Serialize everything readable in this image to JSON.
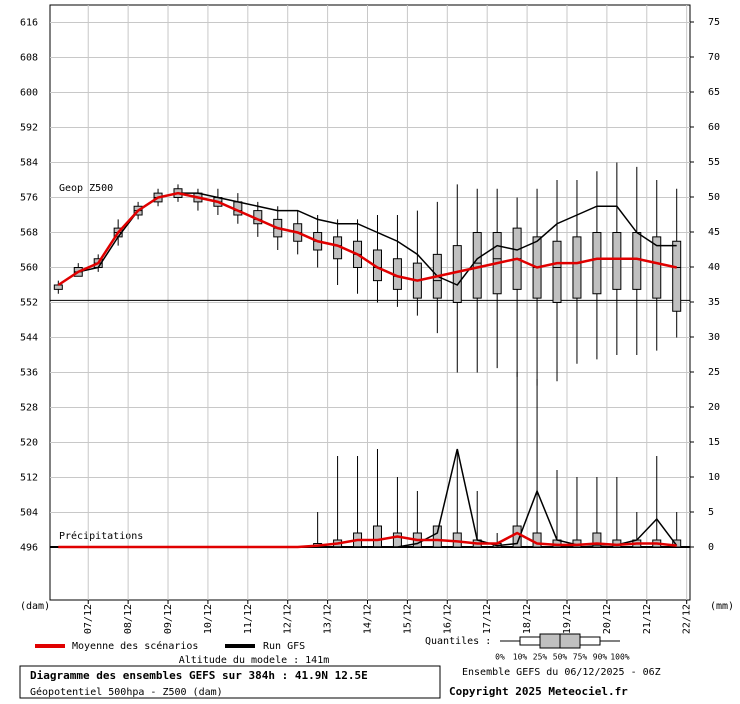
{
  "chart_data": {
    "type": "boxplot",
    "y_label": "Geop Z500",
    "precip_label": "Précipitations",
    "y_unit": "(dam)",
    "y2_unit": "(mm)",
    "x": [
      0,
      12,
      24,
      36,
      48,
      60,
      72,
      84,
      96,
      108,
      120,
      132,
      144,
      156,
      168,
      180,
      192,
      204,
      216,
      228,
      240,
      252,
      264,
      276,
      288,
      300,
      312,
      324,
      336,
      348,
      360,
      372
    ],
    "xlim": [
      -5,
      380
    ],
    "xticks": [
      {
        "value": 18,
        "label": "07/12"
      },
      {
        "value": 42,
        "label": "08/12"
      },
      {
        "value": 66,
        "label": "09/12"
      },
      {
        "value": 90,
        "label": "10/12"
      },
      {
        "value": 114,
        "label": "11/12"
      },
      {
        "value": 138,
        "label": "12/12"
      },
      {
        "value": 162,
        "label": "13/12"
      },
      {
        "value": 186,
        "label": "14/12"
      },
      {
        "value": 210,
        "label": "15/12"
      },
      {
        "value": 234,
        "label": "16/12"
      },
      {
        "value": 258,
        "label": "17/12"
      },
      {
        "value": 282,
        "label": "18/12"
      },
      {
        "value": 306,
        "label": "19/12"
      },
      {
        "value": 330,
        "label": "20/12"
      },
      {
        "value": 354,
        "label": "21/12"
      },
      {
        "value": 378,
        "label": "22/12"
      }
    ],
    "ylim": [
      484,
      620
    ],
    "yticks": [
      496,
      504,
      512,
      520,
      528,
      536,
      544,
      552,
      560,
      568,
      576,
      584,
      592,
      600,
      608,
      616
    ],
    "y2lim": [
      -7.57,
      77.43
    ],
    "y2ticks": [
      0,
      5,
      10,
      15,
      20,
      25,
      30,
      35,
      40,
      45,
      50,
      55,
      60,
      65,
      70,
      75
    ],
    "grid": true,
    "hline": 552.5,
    "legend": [
      {
        "name": "Moyenne des scénarios",
        "color": "#e00000"
      },
      {
        "name": "Run GFS",
        "color": "#000000"
      }
    ],
    "box_color": "#c0c0c0",
    "z500": {
      "min": [
        554,
        558,
        559,
        565,
        571,
        574,
        575,
        573,
        572,
        570,
        567,
        564,
        563,
        560,
        556,
        554,
        552,
        551,
        549,
        545,
        536,
        536,
        537,
        535,
        533,
        534,
        538,
        539,
        540,
        540,
        541,
        544
      ],
      "q25": [
        555,
        558,
        560,
        567,
        572,
        575,
        576,
        575,
        574,
        572,
        570,
        567,
        566,
        564,
        562,
        560,
        557,
        555,
        553,
        553,
        552,
        553,
        554,
        555,
        553,
        552,
        553,
        554,
        555,
        555,
        553,
        550
      ],
      "median": [
        556,
        559,
        561,
        568,
        573,
        576,
        577,
        576,
        575,
        573,
        571,
        569,
        568,
        566,
        565,
        563,
        560,
        558,
        557,
        557,
        559,
        561,
        562,
        562,
        560,
        560,
        561,
        562,
        562,
        562,
        561,
        560
      ],
      "q75": [
        556,
        560,
        562,
        569,
        574,
        577,
        578,
        577,
        576,
        575,
        573,
        571,
        570,
        568,
        567,
        566,
        564,
        562,
        561,
        563,
        565,
        568,
        568,
        569,
        567,
        566,
        567,
        568,
        568,
        568,
        567,
        566
      ],
      "max": [
        557,
        561,
        563,
        571,
        575,
        578,
        579,
        578,
        578,
        577,
        575,
        574,
        573,
        572,
        571,
        571,
        572,
        572,
        573,
        575,
        579,
        578,
        578,
        576,
        578,
        580,
        580,
        582,
        584,
        583,
        580,
        578
      ],
      "mean": [
        556,
        559,
        561,
        568,
        573,
        576,
        577,
        576,
        575,
        573,
        571,
        569,
        568,
        566,
        565,
        563,
        560,
        558,
        557,
        558,
        559,
        560,
        561,
        562,
        560,
        561,
        561,
        562,
        562,
        562,
        561,
        560
      ],
      "gfs": [
        556,
        559,
        560,
        567,
        573,
        576,
        577,
        577,
        576,
        575,
        574,
        573,
        573,
        571,
        570,
        570,
        568,
        566,
        563,
        558,
        556,
        562,
        565,
        564,
        566,
        570,
        572,
        574,
        574,
        568,
        565,
        565
      ]
    },
    "precipitation": {
      "max": [
        0,
        0,
        0,
        0,
        0,
        0,
        0,
        0,
        0,
        0,
        0,
        0,
        0,
        5,
        13,
        13,
        14,
        10,
        8,
        3,
        14,
        8,
        2,
        25,
        24,
        11,
        10,
        10,
        10,
        5,
        13,
        5
      ],
      "q75": [
        0,
        0,
        0,
        0,
        0,
        0,
        0,
        0,
        0,
        0,
        0,
        0,
        0,
        0.5,
        1,
        2,
        3,
        2,
        2,
        3,
        2,
        1,
        0.5,
        3,
        2,
        1,
        1,
        2,
        1,
        1,
        1,
        1
      ],
      "mean": [
        0,
        0,
        0,
        0,
        0,
        0,
        0,
        0,
        0,
        0,
        0,
        0,
        0,
        0.2,
        0.5,
        1,
        1,
        1.5,
        1,
        1,
        0.8,
        0.5,
        0.5,
        2,
        0.5,
        0.3,
        0.3,
        0.5,
        0.3,
        0.5,
        0.5,
        0.2
      ],
      "gfs": [
        0,
        0,
        0,
        0,
        0,
        0,
        0,
        0,
        0,
        0,
        0,
        0,
        0,
        0,
        0,
        0,
        0,
        0,
        0.5,
        2,
        14,
        1,
        0.2,
        0.5,
        8,
        1,
        0.3,
        0.3,
        0.3,
        1,
        4,
        0.2
      ]
    },
    "altitude": "Altitude du modele : 141m",
    "quantiles_title": "Quantiles :",
    "quantiles": [
      "0%",
      "10%",
      "25%",
      "50%",
      "75%",
      "90%",
      "100%"
    ],
    "run_info": "Ensemble GEFS du 06/12/2025 - 06Z",
    "caption_title": "Diagramme des ensembles GEFS sur 384h : 41.9N 12.5E",
    "caption_sub": "Géopotentiel 500hpa - Z500 (dam)",
    "copyright": "Copyright 2025 Meteociel.fr"
  }
}
